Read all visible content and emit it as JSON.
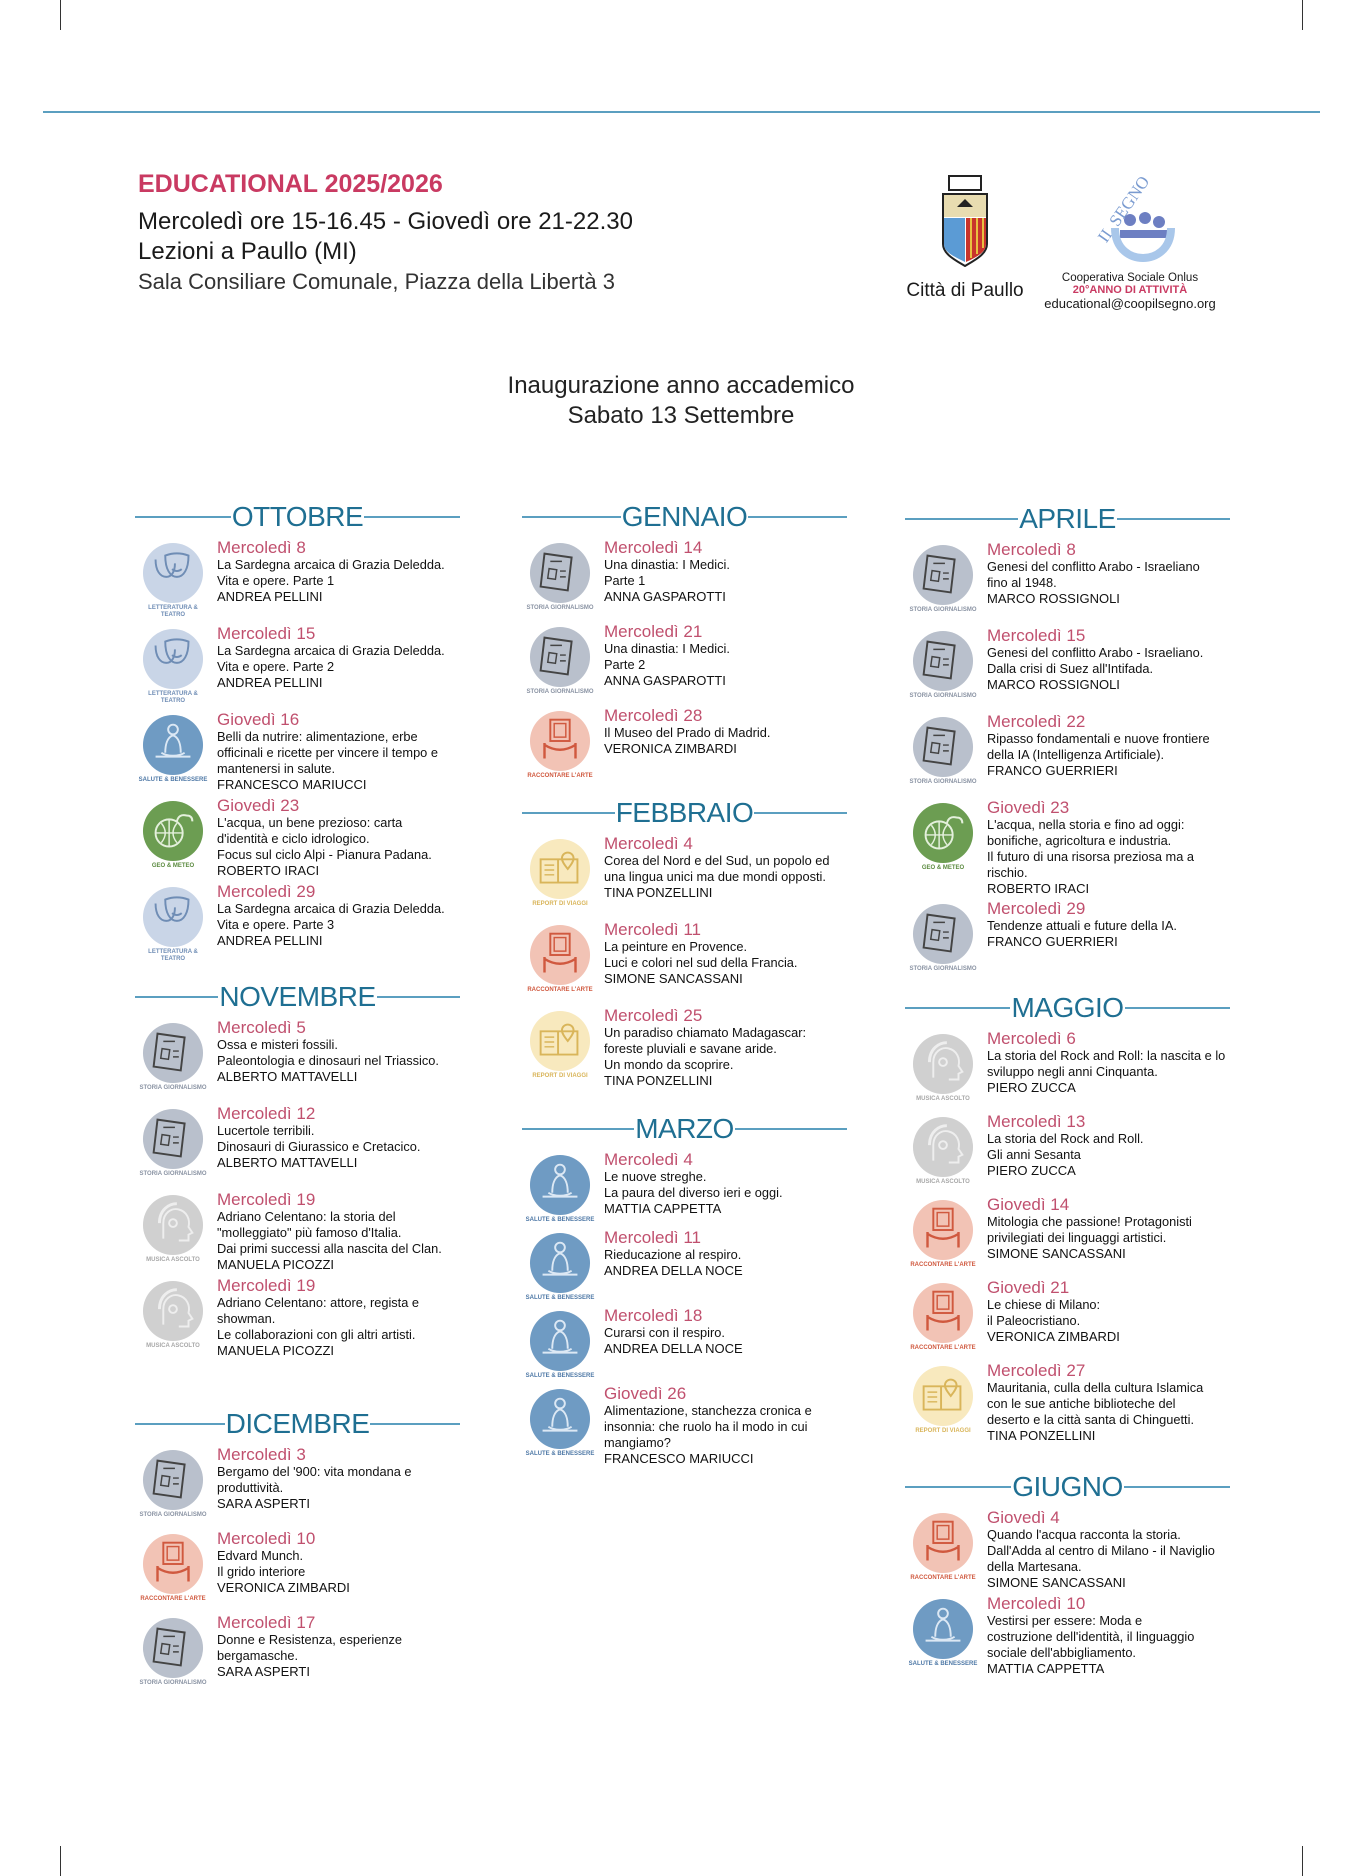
{
  "header": {
    "title": "EDUCATIONAL 2025/2026",
    "schedule": "Mercoledì ore 15-16.45 - Giovedì ore 21-22.30",
    "location": "Lezioni a Paullo (MI)",
    "venue": "Sala Consiliare Comunale, Piazza della Libertà 3"
  },
  "logos": {
    "city": "Città di Paullo",
    "coop_logo_text": "IL SEGNO",
    "coop_line1": "Cooperativa Sociale Onlus",
    "coop_line2": "20°ANNO DI ATTIVITÀ",
    "coop_email": "educational@coopilsegno.org"
  },
  "inauguration": {
    "line1": "Inaugurazione anno accademico",
    "line2": "Sabato 13 Settembre"
  },
  "categories": {
    "letteratura": {
      "label": "LETTERATURA & TEATRO",
      "bg": "#c9d5e7",
      "fg": "#6f8db5",
      "icon": "theater-masks-icon"
    },
    "salute": {
      "label": "SALUTE & BENESSERE",
      "bg": "#6f9bc3",
      "fg": "#4e78a6",
      "icon": "meditation-icon"
    },
    "geo": {
      "label": "GEO & METEO",
      "bg": "#6c9d52",
      "fg": "#5a8a3e",
      "icon": "globe-cloud-icon"
    },
    "storia": {
      "label": "STORIA GIORNALISMO",
      "bg": "#b9c0cc",
      "fg": "#8a93a3",
      "icon": "newspaper-icon"
    },
    "musica": {
      "label": "MUSICA ASCOLTO",
      "bg": "#d0d0d0",
      "fg": "#a8a8a8",
      "icon": "headphones-head-icon"
    },
    "arte": {
      "label": "RACCONTARE L'ARTE",
      "bg": "#f2c3b5",
      "fg": "#d0593f",
      "icon": "museum-frame-icon"
    },
    "viaggi": {
      "label": "REPORT DI VIAGGI",
      "bg": "#f8e9be",
      "fg": "#d9b55a",
      "icon": "map-book-icon"
    }
  },
  "colors": {
    "accent": "#c93a62",
    "month": "#1f6f92",
    "line": "#5b9fc0",
    "date": "#c0506e"
  },
  "months": [
    {
      "name": "OTTOBRE",
      "entries": [
        {
          "cat": "letteratura",
          "date": "Mercoledì 8",
          "title": [
            "La Sardegna arcaica di Grazia Deledda.",
            "Vita e opere. Parte 1"
          ],
          "speaker": "ANDREA PELLINI"
        },
        {
          "cat": "letteratura",
          "date": "Mercoledì 15",
          "title": [
            "La Sardegna arcaica di Grazia Deledda.",
            "Vita e opere. Parte 2"
          ],
          "speaker": "ANDREA PELLINI"
        },
        {
          "cat": "salute",
          "date": "Giovedì 16",
          "title": [
            "Belli da nutrire: alimentazione, erbe",
            "officinali e ricette per vincere il tempo e",
            "mantenersi in salute."
          ],
          "speaker": "FRANCESCO MARIUCCI"
        },
        {
          "cat": "geo",
          "date": "Giovedì 23",
          "title": [
            "L'acqua, un bene prezioso: carta",
            "d'identità e ciclo idrologico.",
            "Focus sul ciclo Alpi - Pianura Padana."
          ],
          "speaker": "ROBERTO IRACI"
        },
        {
          "cat": "letteratura",
          "date": "Mercoledì 29",
          "title": [
            "La Sardegna arcaica di Grazia Deledda.",
            "Vita e opere. Parte 3"
          ],
          "speaker": "ANDREA PELLINI"
        }
      ]
    },
    {
      "name": "NOVEMBRE",
      "entries": [
        {
          "cat": "storia",
          "date": "Mercoledì 5",
          "title": [
            "Ossa e misteri fossili.",
            "Paleontologia e dinosauri nel Triassico."
          ],
          "speaker": "ALBERTO MATTAVELLI"
        },
        {
          "cat": "storia",
          "date": "Mercoledì 12",
          "title": [
            "Lucertole terribili.",
            "Dinosauri di Giurassico e Cretacico."
          ],
          "speaker": "ALBERTO MATTAVELLI"
        },
        {
          "cat": "musica",
          "date": "Mercoledì 19",
          "title": [
            "Adriano Celentano: la storia del",
            "\"molleggiato\" più famoso d'Italia.",
            "Dai primi successi alla nascita del Clan."
          ],
          "speaker": "MANUELA PICOZZI"
        },
        {
          "cat": "musica",
          "date": "Mercoledì 19",
          "title": [
            "Adriano Celentano: attore, regista e",
            "showman.",
            "Le collaborazioni con gli altri artisti."
          ],
          "speaker": "MANUELA PICOZZI"
        }
      ]
    },
    {
      "name": "DICEMBRE",
      "entries": [
        {
          "cat": "storia",
          "date": "Mercoledì 3",
          "title": [
            "Bergamo del '900: vita mondana e",
            "produttività."
          ],
          "speaker": "SARA ASPERTI"
        },
        {
          "cat": "arte",
          "date": "Mercoledì 10",
          "title": [
            "Edvard Munch.",
            "Il grido interiore"
          ],
          "speaker": "VERONICA ZIMBARDI"
        },
        {
          "cat": "storia",
          "date": "Mercoledì 17",
          "title": [
            "Donne e Resistenza, esperienze",
            "bergamasche."
          ],
          "speaker": "SARA ASPERTI"
        }
      ]
    },
    {
      "name": "GENNAIO",
      "entries": [
        {
          "cat": "storia",
          "date": "Mercoledì 14",
          "title": [
            "Una dinastia: I Medici.",
            "Parte 1"
          ],
          "speaker": "ANNA GASPAROTTI"
        },
        {
          "cat": "storia",
          "date": "Mercoledì 21",
          "title": [
            "Una dinastia: I Medici.",
            "Parte 2"
          ],
          "speaker": "ANNA GASPAROTTI"
        },
        {
          "cat": "arte",
          "date": "Mercoledì 28",
          "title": [
            "Il Museo del Prado di Madrid."
          ],
          "speaker": "VERONICA ZIMBARDI"
        }
      ]
    },
    {
      "name": "FEBBRAIO",
      "entries": [
        {
          "cat": "viaggi",
          "date": "Mercoledì 4",
          "title": [
            "Corea del Nord e del Sud, un popolo ed",
            "una lingua unici ma due mondi opposti."
          ],
          "speaker": "TINA PONZELLINI"
        },
        {
          "cat": "arte",
          "date": "Mercoledì 11",
          "title": [
            "La peinture en Provence.",
            "Luci e colori nel sud della Francia."
          ],
          "speaker": "SIMONE SANCASSANI"
        },
        {
          "cat": "viaggi",
          "date": "Mercoledì 25",
          "title": [
            "Un paradiso chiamato Madagascar:",
            "foreste pluviali e savane aride.",
            "Un mondo da scoprire."
          ],
          "speaker": "TINA PONZELLINI"
        }
      ]
    },
    {
      "name": "MARZO",
      "entries": [
        {
          "cat": "salute",
          "date": "Mercoledì 4",
          "title": [
            "Le nuove streghe.",
            "La paura del diverso ieri e oggi."
          ],
          "speaker": "MATTIA CAPPETTA"
        },
        {
          "cat": "salute",
          "date": "Mercoledì 11",
          "title": [
            "Rieducazione al respiro."
          ],
          "speaker": "ANDREA DELLA NOCE"
        },
        {
          "cat": "salute",
          "date": "Mercoledì 18",
          "title": [
            "Curarsi con il respiro."
          ],
          "speaker": "ANDREA DELLA NOCE"
        },
        {
          "cat": "salute",
          "date": "Giovedì 26",
          "title": [
            "Alimentazione, stanchezza cronica e",
            "insonnia: che ruolo ha il modo in cui",
            "mangiamo?"
          ],
          "speaker": "FRANCESCO MARIUCCI"
        }
      ]
    },
    {
      "name": "APRILE",
      "entries": [
        {
          "cat": "storia",
          "date": "Mercoledì 8",
          "title": [
            "Genesi del conflitto Arabo - Israeliano",
            "fino al 1948."
          ],
          "speaker": "MARCO ROSSIGNOLI"
        },
        {
          "cat": "storia",
          "date": "Mercoledì 15",
          "title": [
            "Genesi del conflitto Arabo - Israeliano.",
            "Dalla crisi di Suez all'Intifada."
          ],
          "speaker": "MARCO ROSSIGNOLI"
        },
        {
          "cat": "storia",
          "date": "Mercoledì 22",
          "title": [
            "Ripasso fondamentali e nuove frontiere",
            "della IA (Intelligenza Artificiale)."
          ],
          "speaker": "FRANCO GUERRIERI"
        },
        {
          "cat": "geo",
          "date": "Giovedì 23",
          "title": [
            "L'acqua, nella storia e fino ad oggi:",
            "bonifiche, agricoltura e industria.",
            "Il futuro di una risorsa preziosa ma a",
            "rischio."
          ],
          "speaker": "ROBERTO IRACI"
        },
        {
          "cat": "storia",
          "date": "Mercoledì 29",
          "title": [
            "Tendenze attuali e future della IA."
          ],
          "speaker": "FRANCO GUERRIERI"
        }
      ]
    },
    {
      "name": "MAGGIO",
      "entries": [
        {
          "cat": "musica",
          "date": "Mercoledì 6",
          "title": [
            "La storia del Rock and Roll: la nascita e lo",
            "sviluppo negli anni Cinquanta."
          ],
          "speaker": "PIERO ZUCCA"
        },
        {
          "cat": "musica",
          "date": "Mercoledì 13",
          "title": [
            "La storia del Rock and Roll.",
            "Gli anni Sesanta"
          ],
          "speaker": "PIERO ZUCCA"
        },
        {
          "cat": "arte",
          "date": "Giovedì 14",
          "title": [
            "Mitologia che passione! Protagonisti",
            "privilegiati dei linguaggi artistici."
          ],
          "speaker": "SIMONE SANCASSANI"
        },
        {
          "cat": "arte",
          "date": "Giovedì 21",
          "title": [
            "Le chiese di Milano:",
            "il Paleocristiano."
          ],
          "speaker": "VERONICA ZIMBARDI"
        },
        {
          "cat": "viaggi",
          "date": "Mercoledì 27",
          "title": [
            "Mauritania, culla della cultura Islamica",
            "con le sue antiche biblioteche del",
            "deserto e la città santa di Chinguetti."
          ],
          "speaker": "TINA PONZELLINI"
        }
      ]
    },
    {
      "name": "GIUGNO",
      "entries": [
        {
          "cat": "arte",
          "date": "Giovedì 4",
          "title": [
            "Quando l'acqua racconta la storia.",
            "Dall'Adda al centro di Milano - il Naviglio",
            "della Martesana."
          ],
          "speaker": "SIMONE SANCASSANI"
        },
        {
          "cat": "salute",
          "date": "Mercoledì 10",
          "title": [
            "Vestirsi per essere: Moda e",
            "costruzione dell'identità, il linguaggio",
            "sociale dell'abbigliamento."
          ],
          "speaker": "MATTIA CAPPETTA"
        }
      ]
    }
  ]
}
